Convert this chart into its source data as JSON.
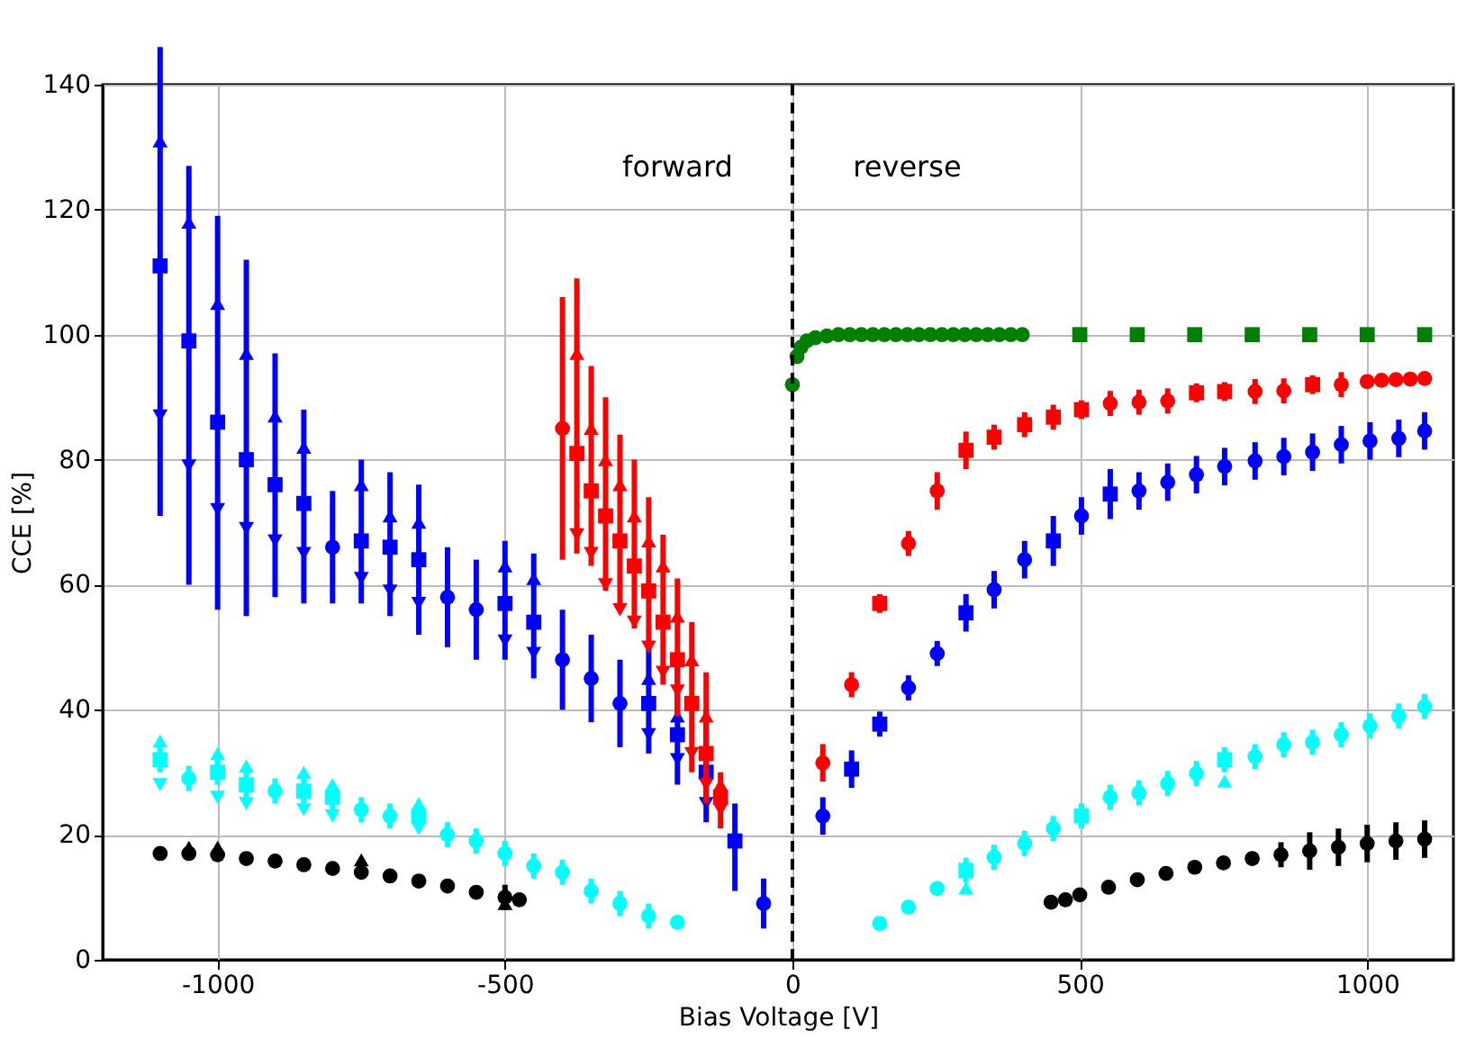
{
  "chart_data": {
    "type": "scatter",
    "xlabel": "Bias Voltage [V]",
    "ylabel": "CCE [%]",
    "xlim": [
      -1200,
      1150
    ],
    "ylim": [
      0,
      140
    ],
    "xticks": [
      -1000,
      -500,
      0,
      500,
      1000
    ],
    "yticks": [
      0,
      20,
      40,
      60,
      80,
      100,
      120,
      140
    ],
    "grid": true,
    "ref_lines": [
      {
        "axis": "x",
        "value": 0,
        "color": "#000000",
        "line_style": "dashed"
      }
    ],
    "annotations": [
      "forward",
      "reverse"
    ],
    "series": [
      {
        "color": "#0000ff",
        "marker": "square",
        "x": [
          -1100,
          -1050,
          -1000,
          -950,
          -900,
          -850,
          -750,
          -700,
          -650,
          -500,
          -450,
          -250,
          -200,
          -150,
          -100,
          103,
          152,
          302,
          454,
          553
        ],
        "values": [
          111,
          99,
          86,
          80,
          76,
          73,
          67,
          66,
          64,
          57,
          54,
          41,
          36,
          30,
          19,
          30.5,
          37.7,
          55.5,
          67,
          74.5
        ],
        "errors": [
          [
            71,
            146
          ],
          [
            60,
            127
          ],
          [
            56,
            119
          ],
          [
            55,
            112
          ],
          [
            58,
            97
          ],
          [
            57,
            88
          ],
          [
            57,
            80
          ],
          [
            55,
            78
          ],
          [
            52,
            76
          ],
          [
            48,
            67
          ],
          [
            45,
            65
          ],
          [
            33,
            50
          ],
          [
            28,
            47
          ],
          [
            22,
            40
          ],
          [
            11,
            25
          ],
          3,
          2,
          3,
          4,
          4
        ]
      },
      {
        "color": "#0000ff",
        "marker": "triangle",
        "x": [
          -1100,
          -1050,
          -1000,
          -950,
          -900,
          -850,
          -750,
          -700,
          -650,
          -500,
          -450,
          -250,
          -200
        ],
        "values": [
          131,
          118,
          105,
          97,
          87,
          82,
          76,
          71,
          70,
          63,
          61,
          45,
          39
        ]
      },
      {
        "color": "#0000ff",
        "marker": "triangle-down",
        "x": [
          -1100,
          -1050,
          -1000,
          -950,
          -900,
          -850,
          -750,
          -700,
          -650,
          -500,
          -450,
          -250,
          -200,
          -150
        ],
        "values": [
          87,
          79,
          72,
          69,
          67,
          65,
          61,
          59,
          57,
          51,
          49,
          36,
          32,
          25
        ]
      },
      {
        "color": "#0000ff",
        "marker": "circle",
        "x": [
          -800,
          -600,
          -550,
          -400,
          -350,
          -300,
          -50,
          53,
          202,
          252,
          351,
          404,
          503,
          603,
          653,
          703,
          752,
          805,
          855,
          905,
          955,
          1005,
          1055,
          1100
        ],
        "values": [
          66,
          58,
          56,
          48,
          45,
          41,
          9,
          23,
          43.5,
          49,
          59.2,
          64,
          71,
          75,
          76.4,
          77.6,
          78.9,
          79.8,
          80.5,
          81.2,
          82.4,
          83,
          83.4,
          84.6
        ],
        "errors": [
          9,
          8,
          8,
          8,
          7,
          7,
          4,
          3,
          2,
          2,
          3,
          3,
          3,
          3,
          3,
          3,
          3,
          3,
          3,
          3,
          3,
          3,
          3,
          3
        ]
      },
      {
        "color": "#ff0000",
        "marker": "square",
        "x": [
          -375,
          -350,
          -325,
          -300,
          -275,
          -250,
          -225,
          -200,
          -175,
          -150,
          -125,
          152,
          302,
          351,
          404,
          454,
          503,
          703,
          752,
          905
        ],
        "values": [
          81,
          75,
          71,
          67,
          63,
          59,
          54,
          48,
          41,
          33,
          26,
          57,
          81.5,
          83.6,
          85.6,
          86.8,
          88,
          90.7,
          90.9,
          92
        ],
        "errors": [
          [
            65,
            109
          ],
          [
            63,
            95
          ],
          [
            59,
            90
          ],
          [
            57,
            84
          ],
          [
            53,
            80
          ],
          [
            50,
            74
          ],
          [
            44,
            68
          ],
          [
            39,
            61
          ],
          [
            30,
            54
          ],
          [
            25,
            46
          ],
          [
            21,
            30
          ],
          1.5,
          3,
          2,
          2,
          2,
          1.5,
          1.5,
          1.5,
          1.5
        ]
      },
      {
        "color": "#ff0000",
        "marker": "triangle",
        "x": [
          -375,
          -350,
          -325,
          -300,
          -275,
          -250,
          -225,
          -200,
          -175,
          -150,
          -125
        ],
        "values": [
          97,
          85,
          80,
          76,
          71,
          67,
          63,
          55,
          48,
          39,
          28
        ]
      },
      {
        "color": "#ff0000",
        "marker": "triangle-down",
        "x": [
          -375,
          -350,
          -325,
          -300,
          -275,
          -250,
          -225,
          -200,
          -175,
          -150,
          -125
        ],
        "values": [
          68,
          65,
          60,
          56,
          54,
          50,
          46,
          43,
          33,
          28,
          24
        ]
      },
      {
        "color": "#ff0000",
        "marker": "circle",
        "x": [
          -400,
          53,
          103,
          202,
          252,
          553,
          603,
          653,
          805,
          855,
          955,
          1000,
          1025,
          1050,
          1075,
          1100
        ],
        "values": [
          85,
          31.5,
          44,
          66.6,
          75,
          89,
          89.2,
          89.4,
          90.9,
          91,
          92,
          92.5,
          92.7,
          92.8,
          92.9,
          93
        ],
        "errors": [
          21,
          3,
          2,
          2,
          3,
          2,
          2,
          2,
          2,
          2,
          2,
          1,
          1,
          1,
          1,
          1
        ]
      },
      {
        "color": "#00ffff",
        "marker": "square",
        "x": [
          -1100,
          -1000,
          -950,
          -850,
          -800,
          -650,
          302,
          503,
          752
        ],
        "values": [
          32,
          30,
          28,
          27,
          26,
          23,
          14.3,
          23,
          32
        ],
        "errors": [
          2,
          2,
          2,
          2,
          2,
          2,
          2,
          2,
          2
        ]
      },
      {
        "color": "#00ffff",
        "marker": "triangle",
        "x": [
          -1100,
          -1000,
          -950,
          -850,
          -800,
          -650,
          302,
          752
        ],
        "values": [
          35,
          33,
          31,
          30,
          28,
          25,
          11.5,
          28.6
        ]
      },
      {
        "color": "#00ffff",
        "marker": "triangle-down",
        "x": [
          -1100,
          -1000,
          -950,
          -850,
          -800,
          -650
        ],
        "values": [
          28,
          26,
          25,
          24,
          23,
          21
        ]
      },
      {
        "color": "#00ffff",
        "marker": "circle",
        "x": [
          -1050,
          -900,
          -750,
          -700,
          -600,
          -550,
          -500,
          -450,
          -400,
          -350,
          -300,
          -250,
          -200,
          152,
          202,
          252,
          351,
          404,
          454,
          553,
          603,
          653,
          703,
          805,
          855,
          905,
          955,
          1005,
          1055,
          1100
        ],
        "values": [
          29,
          27,
          24,
          23,
          20,
          19,
          17,
          15,
          14,
          11,
          9,
          7,
          6,
          5.8,
          8.4,
          11.4,
          16.4,
          18.6,
          21,
          26,
          26.7,
          28.2,
          29.8,
          32.5,
          34.4,
          34.8,
          36,
          37.4,
          39,
          40.5
        ],
        "errors": [
          2,
          2,
          2,
          2,
          2,
          2,
          2,
          2,
          2,
          2,
          2,
          2,
          1,
          1,
          1,
          1,
          2,
          2,
          2,
          2,
          2,
          2,
          2,
          2,
          2,
          2,
          2,
          2,
          2,
          2
        ]
      },
      {
        "color": "#000000",
        "marker": "circle",
        "x": [
          -1100,
          -1050,
          -1000,
          -950,
          -900,
          -850,
          -800,
          -750,
          -700,
          -650,
          -600,
          -550,
          -500,
          -475,
          450,
          475,
          500,
          550,
          600,
          650,
          700,
          750,
          800,
          850,
          900,
          950,
          1000,
          1050,
          1100
        ],
        "values": [
          17,
          17,
          16.8,
          16.2,
          15.8,
          15.2,
          14.6,
          14,
          13.4,
          12.6,
          11.8,
          10.8,
          10,
          9.6,
          9.2,
          9.6,
          10.4,
          11.6,
          12.8,
          13.8,
          14.8,
          15.5,
          16.2,
          16.8,
          17.4,
          18,
          18.6,
          19,
          19.3
        ],
        "errors": [
          1,
          1,
          1,
          1,
          1,
          1,
          1,
          1,
          1,
          1,
          1,
          1,
          2,
          1,
          1,
          1,
          1,
          1,
          1,
          1,
          1,
          1,
          1,
          2,
          3,
          3,
          3,
          3,
          3
        ]
      },
      {
        "color": "#000000",
        "marker": "triangle",
        "x": [
          -1050,
          -1000,
          -750,
          -500
        ],
        "values": [
          18,
          18,
          16,
          9
        ]
      },
      {
        "color": "#008000",
        "marker": "circle",
        "x": [
          0,
          8,
          15,
          25,
          40,
          60,
          80,
          100,
          120,
          140,
          160,
          180,
          200,
          220,
          240,
          260,
          280,
          300,
          320,
          340,
          360,
          380,
          400
        ],
        "values": [
          92,
          96.5,
          98,
          99,
          99.5,
          99.8,
          100,
          100,
          100,
          100,
          100,
          100,
          100,
          100,
          100,
          100,
          100,
          100,
          100,
          100,
          100,
          100,
          100
        ]
      },
      {
        "color": "#008000",
        "marker": "square",
        "x": [
          500,
          600,
          700,
          800,
          900,
          1000,
          1100
        ],
        "values": [
          100,
          100,
          100,
          100,
          100,
          100,
          100
        ]
      }
    ]
  }
}
